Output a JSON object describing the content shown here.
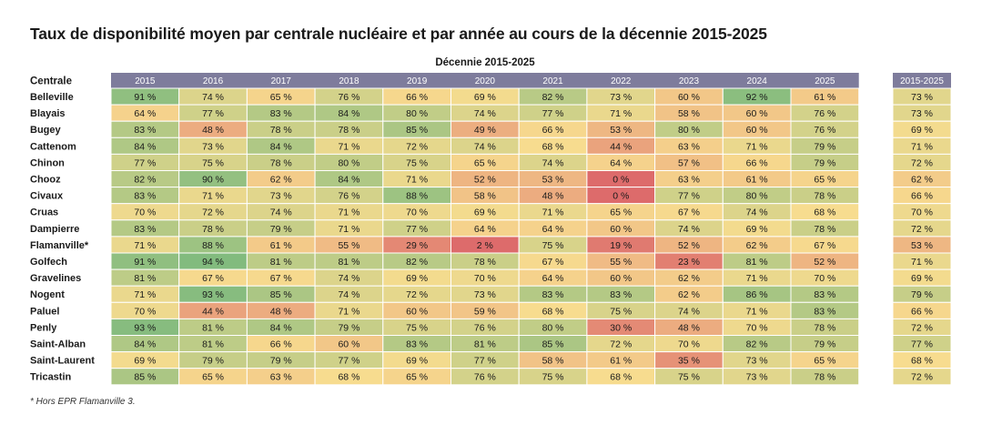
{
  "chart_data": {
    "type": "heatmap",
    "title": "Taux de disponibilité moyen par centrale nucléaire et par année au cours de la décennie 2015-2025",
    "group_label": "Décennie 2015-2025",
    "row_header": "Centrale",
    "columns": [
      "2015",
      "2016",
      "2017",
      "2018",
      "2019",
      "2020",
      "2021",
      "2022",
      "2023",
      "2024",
      "2025"
    ],
    "total_column": "2015-2025",
    "unit": "%",
    "rows": [
      {
        "name": "Belleville",
        "values": [
          91,
          74,
          65,
          76,
          66,
          69,
          82,
          73,
          60,
          92,
          61
        ],
        "total": 73
      },
      {
        "name": "Blayais",
        "values": [
          64,
          77,
          83,
          84,
          80,
          74,
          77,
          71,
          58,
          60,
          76
        ],
        "total": 73
      },
      {
        "name": "Bugey",
        "values": [
          83,
          48,
          78,
          78,
          85,
          49,
          66,
          53,
          80,
          60,
          76
        ],
        "total": 69
      },
      {
        "name": "Cattenom",
        "values": [
          84,
          73,
          84,
          71,
          72,
          74,
          68,
          44,
          63,
          71,
          79
        ],
        "total": 71
      },
      {
        "name": "Chinon",
        "values": [
          77,
          75,
          78,
          80,
          75,
          65,
          74,
          64,
          57,
          66,
          79
        ],
        "total": 72
      },
      {
        "name": "Chooz",
        "values": [
          82,
          90,
          62,
          84,
          71,
          52,
          53,
          0,
          63,
          61,
          65
        ],
        "total": 62
      },
      {
        "name": "Civaux",
        "values": [
          83,
          71,
          73,
          76,
          88,
          58,
          48,
          0,
          77,
          80,
          78
        ],
        "total": 66
      },
      {
        "name": "Cruas",
        "values": [
          70,
          72,
          74,
          71,
          70,
          69,
          71,
          65,
          67,
          74,
          68
        ],
        "total": 70
      },
      {
        "name": "Dampierre",
        "values": [
          83,
          78,
          79,
          71,
          77,
          64,
          64,
          60,
          74,
          69,
          78
        ],
        "total": 72
      },
      {
        "name": "Flamanville*",
        "values": [
          71,
          88,
          61,
          55,
          29,
          2,
          75,
          19,
          52,
          62,
          67
        ],
        "total": 53
      },
      {
        "name": "Golfech",
        "values": [
          91,
          94,
          81,
          81,
          82,
          78,
          67,
          55,
          23,
          81,
          52
        ],
        "total": 71
      },
      {
        "name": "Gravelines",
        "values": [
          81,
          67,
          67,
          74,
          69,
          70,
          64,
          60,
          62,
          71,
          70
        ],
        "total": 69
      },
      {
        "name": "Nogent",
        "values": [
          71,
          93,
          85,
          74,
          72,
          73,
          83,
          83,
          62,
          86,
          83
        ],
        "total": 79
      },
      {
        "name": "Paluel",
        "values": [
          70,
          44,
          48,
          71,
          60,
          59,
          68,
          75,
          74,
          71,
          83
        ],
        "total": 66
      },
      {
        "name": "Penly",
        "values": [
          93,
          81,
          84,
          79,
          75,
          76,
          80,
          30,
          48,
          70,
          78
        ],
        "total": 72
      },
      {
        "name": "Saint-Alban",
        "values": [
          84,
          81,
          66,
          60,
          83,
          81,
          85,
          72,
          70,
          82,
          79
        ],
        "total": 77
      },
      {
        "name": "Saint-Laurent",
        "values": [
          69,
          79,
          79,
          77,
          69,
          77,
          58,
          61,
          35,
          73,
          65
        ],
        "total": 68
      },
      {
        "name": "Tricastin",
        "values": [
          85,
          65,
          63,
          68,
          65,
          76,
          75,
          68,
          75,
          73,
          78
        ],
        "total": 72
      }
    ]
  },
  "footnote": "* Hors EPR Flamanville 3.",
  "colors": {
    "header_bg": "#7e7c9c",
    "header_text": "#ffffff",
    "low": "#dd6b6b",
    "mid": "#f7dc8f",
    "high": "#82bb7e",
    "divider": "#ffffff"
  }
}
